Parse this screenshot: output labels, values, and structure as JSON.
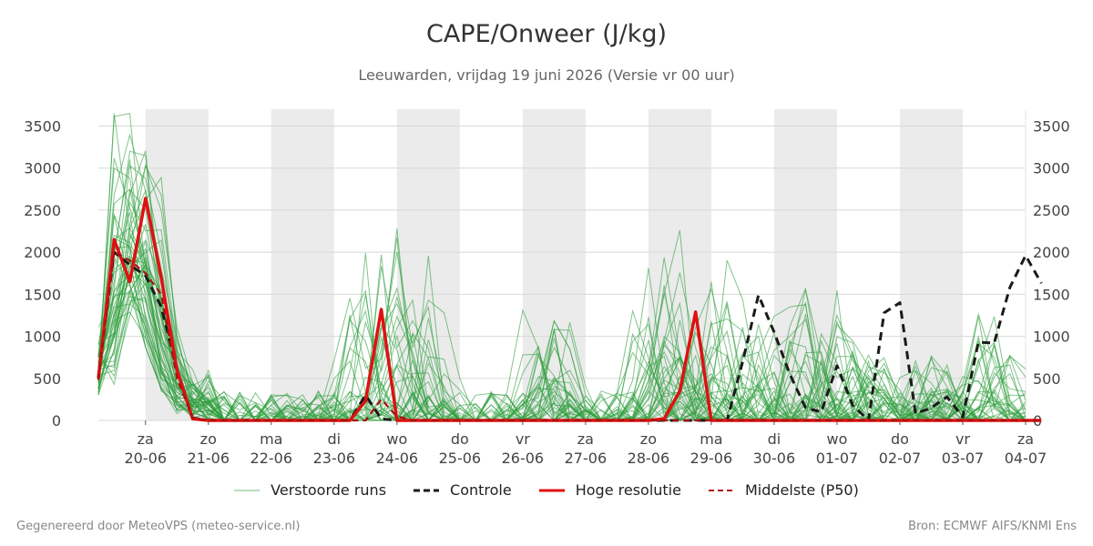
{
  "header": {
    "title": "CAPE/Onweer (J/kg)",
    "subtitle": "Leeuwarden, vrijdag 19 juni 2026 (Versie vr 00 uur)"
  },
  "footer": {
    "left": "Gegenereerd door MeteoVPS (meteo-service.nl)",
    "right": "Bron: ECMWF AIFS/KNMI Ens"
  },
  "colors": {
    "ensemble": "#2e9e3e",
    "control": "#1a1a1a",
    "hires": "#dd1111",
    "median": "#aa1111",
    "weekend_band": "#ebebeb",
    "grid": "#d8d8d8"
  },
  "legend": {
    "ensemble": "Verstoorde runs",
    "control": "Controle",
    "hires": "Hoge resolutie",
    "median": "Middelste (P50)"
  },
  "chart_data": {
    "type": "line",
    "title": "CAPE/Onweer (J/kg)",
    "subtitle": "Leeuwarden, vrijdag 19 juni 2026 (Versie vr 00 uur)",
    "x_unit": "days",
    "xlim": [
      -0.75,
      14
    ],
    "ylim": [
      0,
      3700
    ],
    "y_ticks": [
      0,
      500,
      1000,
      1500,
      2000,
      2500,
      3000,
      3500
    ],
    "grid": true,
    "legend_position": "bottom",
    "day_ticks": [
      {
        "x": 0,
        "day": "za",
        "date": "20-06"
      },
      {
        "x": 1,
        "day": "zo",
        "date": "21-06"
      },
      {
        "x": 2,
        "day": "ma",
        "date": "22-06"
      },
      {
        "x": 3,
        "day": "di",
        "date": "23-06"
      },
      {
        "x": 4,
        "day": "wo",
        "date": "24-06"
      },
      {
        "x": 5,
        "day": "do",
        "date": "25-06"
      },
      {
        "x": 6,
        "day": "vr",
        "date": "26-06"
      },
      {
        "x": 7,
        "day": "za",
        "date": "27-06"
      },
      {
        "x": 8,
        "day": "zo",
        "date": "28-06"
      },
      {
        "x": 9,
        "day": "ma",
        "date": "29-06"
      },
      {
        "x": 10,
        "day": "di",
        "date": "30-06"
      },
      {
        "x": 11,
        "day": "wo",
        "date": "01-07"
      },
      {
        "x": 12,
        "day": "do",
        "date": "02-07"
      },
      {
        "x": 13,
        "day": "vr",
        "date": "03-07"
      },
      {
        "x": 14,
        "day": "za",
        "date": "04-07"
      }
    ],
    "shaded_bands": [
      [
        0,
        1
      ],
      [
        2,
        3
      ],
      [
        4,
        5
      ],
      [
        6,
        7
      ],
      [
        8,
        9
      ],
      [
        10,
        11
      ],
      [
        12,
        13
      ]
    ],
    "series": [
      {
        "name": "Controle",
        "style": "dashed",
        "color": "#1a1a1a",
        "points": [
          [
            -0.75,
            520
          ],
          [
            -0.5,
            2000
          ],
          [
            -0.25,
            1850
          ],
          [
            0,
            1720
          ],
          [
            0.25,
            1350
          ],
          [
            0.5,
            600
          ],
          [
            0.75,
            30
          ],
          [
            1,
            0
          ],
          [
            2,
            0
          ],
          [
            3,
            0
          ],
          [
            3.25,
            0
          ],
          [
            3.5,
            300
          ],
          [
            3.75,
            20
          ],
          [
            4,
            0
          ],
          [
            5,
            0
          ],
          [
            6,
            0
          ],
          [
            7,
            0
          ],
          [
            8,
            0
          ],
          [
            9,
            0
          ],
          [
            9.25,
            0
          ],
          [
            9.5,
            700
          ],
          [
            9.75,
            1490
          ],
          [
            10,
            1050
          ],
          [
            10.25,
            550
          ],
          [
            10.5,
            150
          ],
          [
            10.75,
            100
          ],
          [
            11,
            650
          ],
          [
            11.25,
            180
          ],
          [
            11.5,
            0
          ],
          [
            11.75,
            1280
          ],
          [
            12,
            1400
          ],
          [
            12.25,
            80
          ],
          [
            12.5,
            150
          ],
          [
            12.75,
            280
          ],
          [
            13,
            40
          ],
          [
            13.25,
            930
          ],
          [
            13.5,
            920
          ],
          [
            13.75,
            1580
          ],
          [
            14,
            1960
          ],
          [
            14.25,
            1630
          ]
        ]
      },
      {
        "name": "Hoge resolutie",
        "style": "solid",
        "color": "#dd1111",
        "points": [
          [
            -0.75,
            500
          ],
          [
            -0.5,
            2150
          ],
          [
            -0.25,
            1650
          ],
          [
            0,
            2640
          ],
          [
            0.25,
            1700
          ],
          [
            0.5,
            600
          ],
          [
            0.75,
            20
          ],
          [
            1,
            0
          ],
          [
            2,
            0
          ],
          [
            3,
            0
          ],
          [
            3.25,
            0
          ],
          [
            3.5,
            230
          ],
          [
            3.75,
            1320
          ],
          [
            4,
            0
          ],
          [
            5,
            0
          ],
          [
            6,
            0
          ],
          [
            7,
            0
          ],
          [
            8,
            0
          ],
          [
            8.25,
            20
          ],
          [
            8.5,
            350
          ],
          [
            8.75,
            1290
          ],
          [
            9,
            0
          ],
          [
            10,
            0
          ],
          [
            11,
            0
          ],
          [
            12,
            0
          ],
          [
            13,
            0
          ],
          [
            14,
            0
          ],
          [
            14.25,
            0
          ]
        ]
      },
      {
        "name": "Middelste (P50)",
        "style": "dashed",
        "color": "#aa1111",
        "points": [
          [
            -0.75,
            480
          ],
          [
            -0.5,
            2000
          ],
          [
            -0.25,
            1900
          ],
          [
            0,
            1750
          ],
          [
            0.25,
            1500
          ],
          [
            0.5,
            500
          ],
          [
            0.75,
            30
          ],
          [
            1,
            0
          ],
          [
            2,
            0
          ],
          [
            3,
            0
          ],
          [
            3.5,
            0
          ],
          [
            3.75,
            250
          ],
          [
            4,
            50
          ],
          [
            4.25,
            0
          ],
          [
            5,
            0
          ],
          [
            6,
            0
          ],
          [
            7,
            0
          ],
          [
            8,
            0
          ],
          [
            9,
            0
          ],
          [
            10,
            0
          ],
          [
            11,
            0
          ],
          [
            12,
            0
          ],
          [
            13,
            0
          ],
          [
            14,
            0
          ],
          [
            14.25,
            0
          ]
        ]
      }
    ],
    "ensemble_member_count": 50
  }
}
